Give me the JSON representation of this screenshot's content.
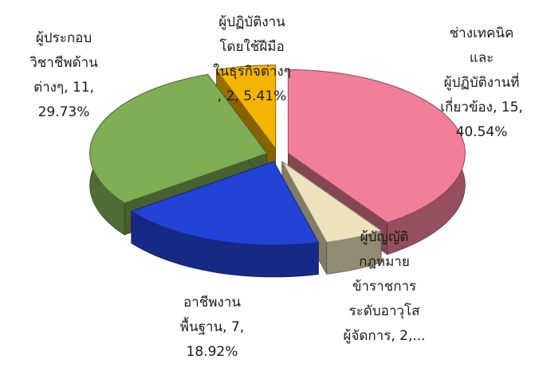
{
  "chart_data": {
    "type": "pie3d",
    "categories": [
      "ช่างเทคนิค และ ผู้ปฏิบัติงานที่เกี่ยวข้อง",
      "ผู้บัญญัติกฎหมาย ข้าราชการระดับอาวุโส ผู้จัดการ",
      "อาชีพงานพื้นฐาน",
      "ผู้ประกอบวิชาชีพด้านต่างๆ",
      "ผู้ปฏิบัติงานโดยใช้ฝีมือในธุรกิจต่างๆ"
    ],
    "values": [
      15,
      2,
      7,
      11,
      2
    ],
    "labels": [
      [
        "ช่างเทคนิค",
        "และ",
        "ผู้ปฏิบัติงานที่",
        "เกี่ยวข้อง, 15,",
        "40.54%"
      ],
      [
        "ผู้บัญญัติ",
        "กฎหมาย",
        "ข้าราชการ",
        "ระดับอาวุโส",
        "ผู้จัดการ, 2,..."
      ],
      [
        "อาชีพงาน",
        "พื้นฐาน, 7,",
        "18.92%"
      ],
      [
        "ผู้ประกอบ",
        "วิชาชีพด้าน",
        "ต่างๆ, 11,",
        "29.73%"
      ],
      [
        "ผู้ปฏิบัติงาน",
        "โดยใช้ฝีมือ",
        "ในธุรกิจต่างๆ",
        ", 2, 5.41%"
      ]
    ],
    "colors": [
      "#f27f98",
      "#ece2bc",
      "#2343d6",
      "#7fae55",
      "#f4b400"
    ]
  }
}
